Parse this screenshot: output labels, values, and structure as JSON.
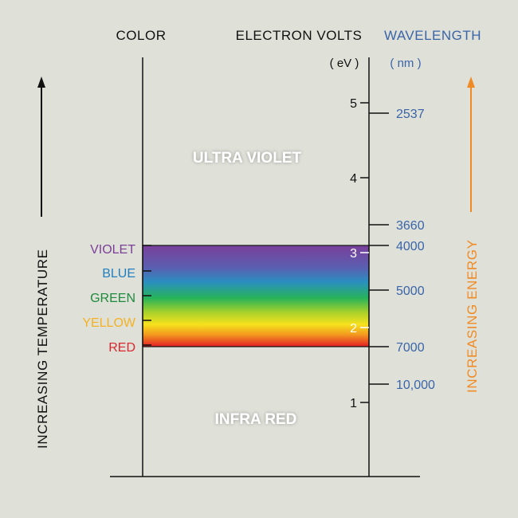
{
  "headers": {
    "color": "COLOR",
    "electron_volts": "ELECTRON VOLTS",
    "ev_unit": "( eV )",
    "wavelength": "WAVELENGTH",
    "nm_unit": "( nm )"
  },
  "regions": {
    "ultra_violet": "ULTRA VIOLET",
    "infra_red": "INFRA RED"
  },
  "color_labels": [
    {
      "name": "VIOLET",
      "color": "#7b3f98"
    },
    {
      "name": "BLUE",
      "color": "#1f7fc0"
    },
    {
      "name": "GREEN",
      "color": "#1e8a3c"
    },
    {
      "name": "YELLOW",
      "color": "#f4b122"
    },
    {
      "name": "RED",
      "color": "#d9272e"
    }
  ],
  "ev_ticks": [
    "5",
    "4",
    "3",
    "2",
    "1"
  ],
  "wavelength_ticks": [
    "2537",
    "3660",
    "4000",
    "5000",
    "7000",
    "10,000"
  ],
  "side_labels": {
    "temperature": "INCREASING TEMPERATURE",
    "energy": "INCREASING ENERGY"
  },
  "colors": {
    "background": "#dfe1d9",
    "ink": "#111111",
    "wavelength_blue": "#3a64a8",
    "energy_orange": "#f08a24",
    "region_text": "#ffffff"
  }
}
